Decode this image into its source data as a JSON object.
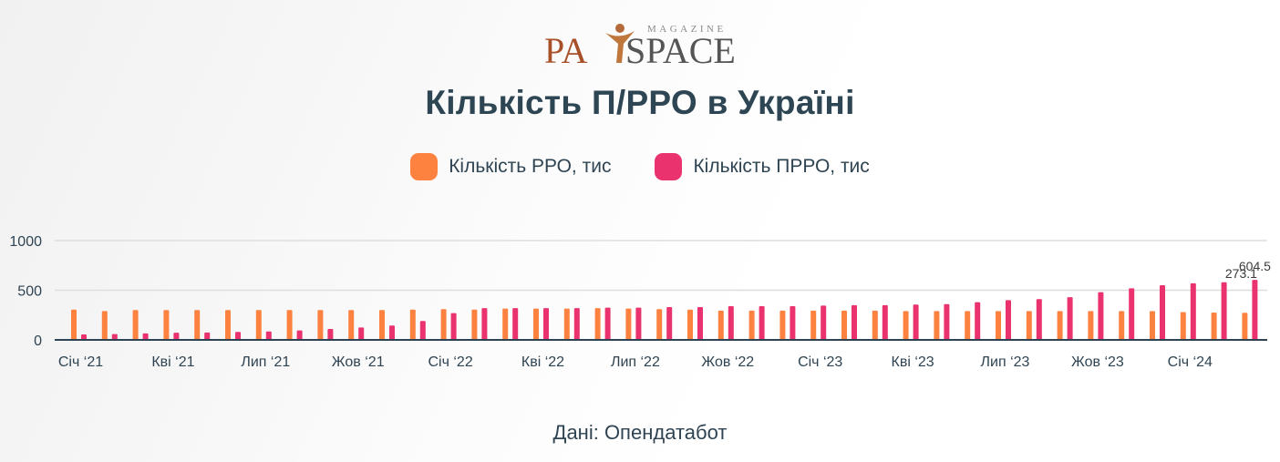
{
  "logo": {
    "main_left": "PA",
    "main_right": "SPACE",
    "small": "MAGAZINE"
  },
  "source": "Дані: Опендатабот",
  "colors": {
    "rro": "#fd8240",
    "prro": "#e9326e",
    "grid": "#dedede",
    "axis": "#2f4452",
    "text": "#2f4452"
  },
  "chart_data": {
    "type": "bar",
    "title": "Кількість П/РРО в Україні",
    "xlabel": "",
    "ylabel": "",
    "ylim": [
      0,
      1000
    ],
    "yticks": [
      0,
      500,
      1000
    ],
    "grid": true,
    "legend_position": "top",
    "categories": [
      "Січ '21",
      "Лют '21",
      "Бер '21",
      "Кві '21",
      "Тра '21",
      "Чер '21",
      "Лип '21",
      "Сер '21",
      "Вер '21",
      "Жов '21",
      "Лис '21",
      "Гру '21",
      "Січ '22",
      "Лют '22",
      "Бер '22",
      "Кві '22",
      "Тра '22",
      "Чер '22",
      "Лип '22",
      "Сер '22",
      "Вер '22",
      "Жов '22",
      "Лис '22",
      "Гру '22",
      "Січ '23",
      "Лют '23",
      "Бер '23",
      "Кві '23",
      "Тра '23",
      "Чер '23",
      "Лип '23",
      "Сер '23",
      "Вер '23",
      "Жов '23",
      "Лис '23",
      "Гру '23",
      "Січ '24",
      "Лют '24",
      "Бер '24"
    ],
    "xtick_labels": [
      "Січ ‘21",
      "Кві ‘21",
      "Лип ‘21",
      "Жов ‘21",
      "Січ ‘22",
      "Кві ‘22",
      "Лип ‘22",
      "Жов ‘22",
      "Січ ‘23",
      "Кві ‘23",
      "Лип ‘23",
      "Жов ‘23",
      "Січ ‘24"
    ],
    "xtick_every": 3,
    "series": [
      {
        "name": "Кількість РРО, тис",
        "values": [
          305,
          290,
          300,
          300,
          300,
          300,
          300,
          300,
          300,
          300,
          300,
          305,
          310,
          305,
          315,
          315,
          315,
          320,
          315,
          310,
          305,
          295,
          295,
          295,
          295,
          295,
          295,
          290,
          290,
          290,
          290,
          290,
          290,
          290,
          290,
          290,
          280,
          275,
          273
        ]
      },
      {
        "name": "Кількість ПРРО, тис",
        "values": [
          55,
          58,
          65,
          72,
          75,
          80,
          85,
          95,
          110,
          125,
          145,
          190,
          270,
          320,
          320,
          320,
          320,
          325,
          325,
          330,
          330,
          340,
          340,
          340,
          345,
          350,
          350,
          355,
          360,
          380,
          400,
          410,
          430,
          480,
          520,
          550,
          570,
          580,
          604.5
        ]
      }
    ],
    "data_labels": [
      {
        "series": 1,
        "index": 38,
        "text": "604.5"
      },
      {
        "series": 0,
        "index": 38,
        "text": "273.1"
      }
    ]
  }
}
